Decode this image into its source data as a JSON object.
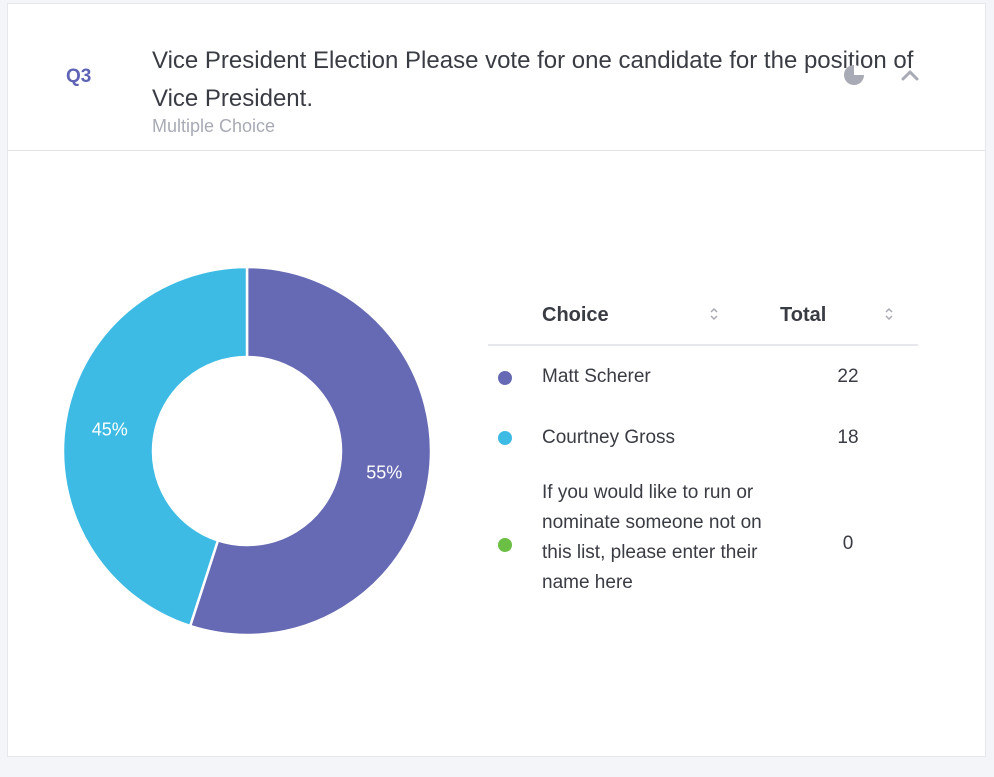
{
  "question": {
    "number": "Q3",
    "title": "Vice President Election Please vote for one candidate for the position of Vice President.",
    "type": "Multiple Choice"
  },
  "icons": {
    "chart_toggle": "pie-chart-icon",
    "collapse": "chevron-up-icon",
    "sort": "sort-icon"
  },
  "table": {
    "headers": {
      "choice": "Choice",
      "total": "Total"
    },
    "rows": [
      {
        "choice": "Matt Scherer",
        "total": "22",
        "color": "#6669b3"
      },
      {
        "choice": "Courtney Gross",
        "total": "18",
        "color": "#3dbbe4"
      },
      {
        "choice": "If you would like to run or nominate someone not on this list, please enter their name here",
        "total": "0",
        "color": "#6cbf45"
      }
    ]
  },
  "chart_data": {
    "type": "pie",
    "variant": "donut",
    "categories": [
      "Matt Scherer",
      "Courtney Gross",
      "If you would like to run or nominate someone not on this list, please enter their name here"
    ],
    "values": [
      22,
      18,
      0
    ],
    "labels": [
      "55%",
      "45%",
      ""
    ],
    "colors": [
      "#6669b3",
      "#3dbbe4",
      "#6cbf45"
    ],
    "title": ""
  }
}
